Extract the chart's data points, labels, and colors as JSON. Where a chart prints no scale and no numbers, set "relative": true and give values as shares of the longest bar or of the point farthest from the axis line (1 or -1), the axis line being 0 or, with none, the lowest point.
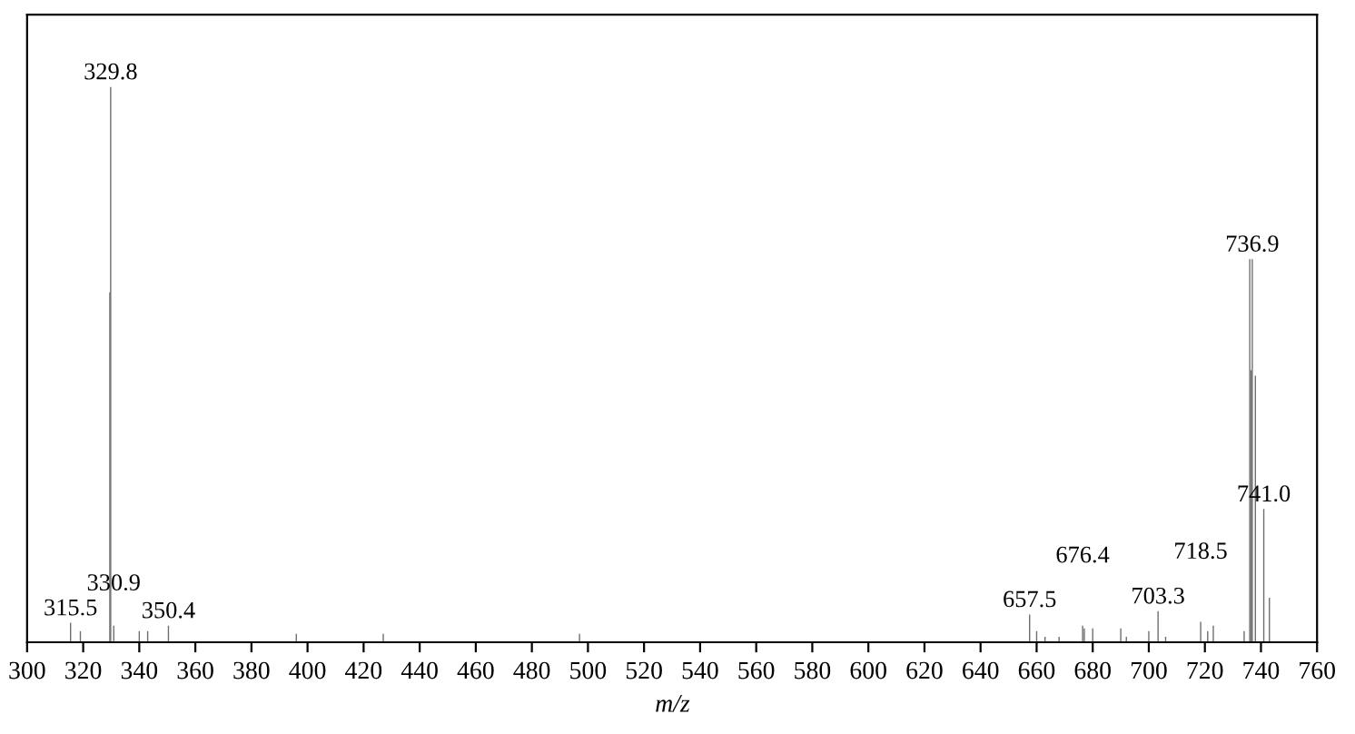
{
  "chart_data": {
    "type": "bar",
    "relative": true,
    "xlabel": "$_{}$m/z",
    "color": "#6e6e6e",
    "x": [
      315.5,
      319,
      329.5,
      329.8,
      330.9,
      340,
      343,
      350.4,
      396,
      427,
      497,
      657.5,
      660,
      663,
      668,
      676.4,
      677,
      680,
      690,
      692,
      700,
      703.3,
      706,
      718.5,
      721,
      723,
      734,
      736.0,
      736.5,
      736.9,
      738,
      741.0,
      743
    ],
    "values": [
      0.035,
      0.02,
      0.63,
      1.0,
      0.03,
      0.02,
      0.02,
      0.03,
      0.015,
      0.015,
      0.015,
      0.05,
      0.02,
      0.01,
      0.01,
      0.03,
      0.025,
      0.025,
      0.025,
      0.01,
      0.02,
      0.056,
      0.01,
      0.037,
      0.02,
      0.03,
      0.02,
      0.69,
      0.49,
      0.69,
      0.48,
      0.24,
      0.08
    ],
    "annotations": [
      {
        "text": "315.5",
        "x": 315.5,
        "y": 0.035
      },
      {
        "text": "329.8",
        "x": 329.8,
        "y": 1.0
      },
      {
        "text": "330.9",
        "x": 330.9,
        "y": 0.03
      },
      {
        "text": "350.4",
        "x": 350.4,
        "y": 0.03
      },
      {
        "text": "657.5",
        "x": 657.5,
        "y": 0.05
      },
      {
        "text": "676.4",
        "x": 676.4,
        "y": 0.03
      },
      {
        "text": "703.3",
        "x": 703.3,
        "y": 0.056
      },
      {
        "text": "718.5",
        "x": 718.5,
        "y": 0.037
      },
      {
        "text": "736.9",
        "x": 736.9,
        "y": 0.69
      },
      {
        "text": "741.0",
        "x": 741.0,
        "y": 0.24
      }
    ],
    "xlim": [
      300,
      760
    ],
    "xticks": [
      300,
      320,
      340,
      360,
      380,
      400,
      420,
      440,
      460,
      480,
      500,
      520,
      540,
      560,
      580,
      600,
      620,
      640,
      660,
      680,
      700,
      720,
      740,
      760
    ],
    "grid": false,
    "legend": false
  }
}
